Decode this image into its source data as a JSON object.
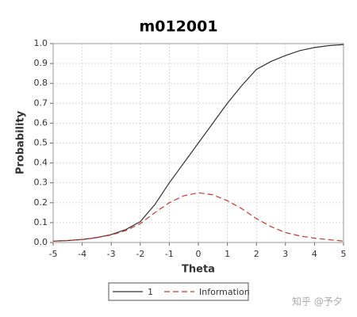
{
  "chart_data": {
    "type": "line",
    "title": "m012001",
    "x_label": "Theta",
    "y_label": "Probability",
    "x": [
      -5,
      -4.5,
      -4,
      -3.5,
      -3,
      -2.5,
      -2,
      -1.5,
      -1,
      -0.5,
      0,
      0.5,
      1,
      1.5,
      2,
      2.5,
      3,
      3.5,
      4,
      4.5,
      5
    ],
    "series": [
      {
        "name": "1",
        "color": "#333333",
        "dash": "solid",
        "values": [
          0.007,
          0.01,
          0.015,
          0.025,
          0.04,
          0.065,
          0.105,
          0.19,
          0.3,
          0.4,
          0.5,
          0.6,
          0.7,
          0.79,
          0.87,
          0.91,
          0.94,
          0.965,
          0.98,
          0.99,
          0.995
        ]
      },
      {
        "name": "Information",
        "color": "#c8382c",
        "dash": "dashed",
        "values": [
          0.007,
          0.01,
          0.015,
          0.024,
          0.038,
          0.06,
          0.095,
          0.15,
          0.2,
          0.235,
          0.25,
          0.24,
          0.21,
          0.17,
          0.12,
          0.08,
          0.05,
          0.033,
          0.022,
          0.014,
          0.007
        ]
      }
    ],
    "xlim": [
      -5,
      5
    ],
    "xticks": [
      -5,
      -4,
      -3,
      -2,
      -1,
      0,
      1,
      2,
      3,
      4,
      5
    ],
    "ylim": [
      0,
      1
    ],
    "yticks": [
      {
        "value": 0,
        "label": "0.0"
      },
      0.1,
      0.2,
      0.3,
      0.4,
      0.5,
      0.6,
      0.7,
      0.8,
      0.9,
      {
        "value": 1,
        "label": "1.0"
      }
    ],
    "grid": true,
    "legend": "bottom",
    "watermark": "知乎 @予夕"
  }
}
